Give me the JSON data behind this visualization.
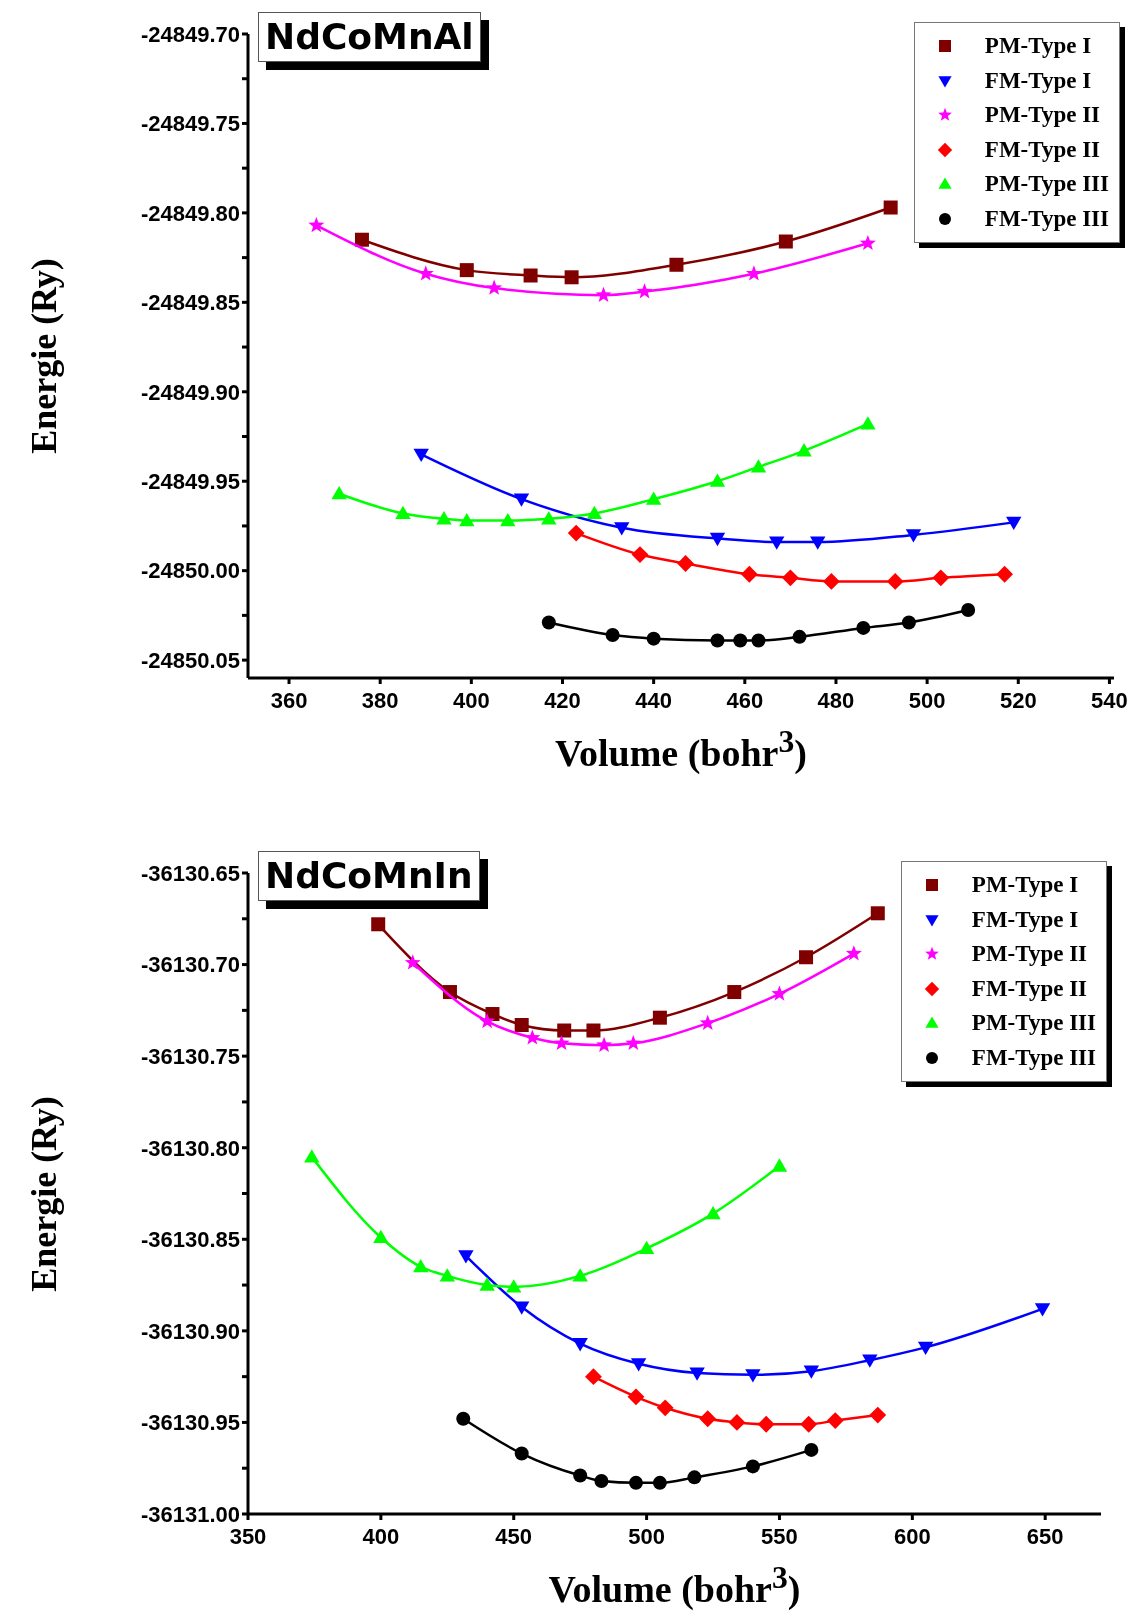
{
  "chart_data": [
    {
      "type": "line",
      "title": "NdCoMnAl",
      "xlabel": "Volume (bohr$^{3}$)",
      "ylabel": "Energie (Ry)",
      "legend": "top right",
      "grid": false,
      "line_style": "solid",
      "xlim": [
        351,
        541
      ],
      "xticks": [
        360,
        380,
        400,
        420,
        440,
        460,
        480,
        500,
        520,
        540
      ],
      "ylim": [
        -24850.06,
        -24849.7
      ],
      "yticks": [
        {
          "value": -24850.05,
          "label": "-24850.05"
        },
        {
          "value": -24850.025,
          "label": null
        },
        {
          "value": -24850.0,
          "label": "-24850.00"
        },
        {
          "value": -24849.975,
          "label": null
        },
        {
          "value": -24849.95,
          "label": "-24849.95"
        },
        {
          "value": -24849.925,
          "label": null
        },
        {
          "value": -24849.9,
          "label": "-24849.90"
        },
        {
          "value": -24849.875,
          "label": null
        },
        {
          "value": -24849.85,
          "label": "-24849.85"
        },
        {
          "value": -24849.825,
          "label": null
        },
        {
          "value": -24849.8,
          "label": "-24849.80"
        },
        {
          "value": -24849.775,
          "label": null
        },
        {
          "value": -24849.75,
          "label": "-24849.75"
        },
        {
          "value": -24849.725,
          "label": null
        },
        {
          "value": -24849.7,
          "label": "-24849.70"
        }
      ],
      "series": [
        {
          "name": "PM-Type I",
          "color": "#800000",
          "marker": "square",
          "x": [
            376,
            399,
            413,
            422,
            445,
            469,
            492
          ],
          "values": [
            -24849.815,
            -24849.832,
            -24849.835,
            -24849.836,
            -24849.829,
            -24849.816,
            -24849.797
          ]
        },
        {
          "name": "FM-Type I",
          "color": "#0000ff",
          "marker": "triangle-down",
          "x": [
            389,
            411,
            433,
            454,
            467,
            476,
            497,
            519
          ],
          "values": [
            -24849.935,
            -24849.96,
            -24849.976,
            -24849.982,
            -24849.984,
            -24849.984,
            -24849.98,
            -24849.973
          ]
        },
        {
          "name": "PM-Type II",
          "color": "#ff00ff",
          "marker": "star",
          "x": [
            366,
            390,
            405,
            429,
            438,
            462,
            487
          ],
          "values": [
            -24849.807,
            -24849.834,
            -24849.842,
            -24849.846,
            -24849.844,
            -24849.834,
            -24849.817
          ]
        },
        {
          "name": "FM-Type II",
          "color": "#ff0000",
          "marker": "diamond",
          "x": [
            423,
            437,
            447,
            461,
            470,
            479,
            493,
            503,
            517
          ],
          "values": [
            -24849.979,
            -24849.991,
            -24849.996,
            -24850.002,
            -24850.004,
            -24850.006,
            -24850.006,
            -24850.004,
            -24850.002
          ]
        },
        {
          "name": "PM-Type III",
          "color": "#00ff00",
          "marker": "triangle",
          "x": [
            371,
            385,
            394,
            399,
            408,
            417,
            427,
            440,
            454,
            463,
            473,
            487
          ],
          "values": [
            -24849.957,
            -24849.968,
            -24849.971,
            -24849.972,
            -24849.972,
            -24849.971,
            -24849.968,
            -24849.96,
            -24849.95,
            -24849.942,
            -24849.933,
            -24849.918
          ]
        },
        {
          "name": "FM-Type III",
          "color": "#000000",
          "marker": "circle",
          "x": [
            417,
            431,
            440,
            454,
            459,
            463,
            472,
            486,
            496,
            509
          ],
          "values": [
            -24850.029,
            -24850.036,
            -24850.038,
            -24850.039,
            -24850.039,
            -24850.039,
            -24850.037,
            -24850.032,
            -24850.029,
            -24850.022
          ]
        }
      ]
    },
    {
      "type": "line",
      "title": "NdCoMnIn",
      "xlabel": "Volume (bohr$^{3}$)",
      "ylabel": "Energie (Ry)",
      "legend": "top right",
      "grid": false,
      "line_style": "solid",
      "xlim": [
        350,
        671
      ],
      "xticks": [
        350,
        400,
        450,
        500,
        550,
        600,
        650
      ],
      "ylim": [
        -36131.0,
        -36130.65
      ],
      "yticks": [
        {
          "value": -36131.0,
          "label": "-36131.00"
        },
        {
          "value": -36130.975,
          "label": null
        },
        {
          "value": -36130.95,
          "label": "-36130.95"
        },
        {
          "value": -36130.925,
          "label": null
        },
        {
          "value": -36130.9,
          "label": "-36130.90"
        },
        {
          "value": -36130.875,
          "label": null
        },
        {
          "value": -36130.85,
          "label": "-36130.85"
        },
        {
          "value": -36130.825,
          "label": null
        },
        {
          "value": -36130.8,
          "label": "-36130.80"
        },
        {
          "value": -36130.775,
          "label": null
        },
        {
          "value": -36130.75,
          "label": "-36130.75"
        },
        {
          "value": -36130.725,
          "label": null
        },
        {
          "value": -36130.7,
          "label": "-36130.70"
        },
        {
          "value": -36130.675,
          "label": null
        },
        {
          "value": -36130.65,
          "label": "-36130.65"
        }
      ],
      "series": [
        {
          "name": "PM-Type I",
          "color": "#800000",
          "marker": "square",
          "x": [
            399,
            426,
            442,
            453,
            469,
            480,
            505,
            533,
            560,
            587
          ],
          "values": [
            -36130.678,
            -36130.715,
            -36130.727,
            -36130.733,
            -36130.736,
            -36130.736,
            -36130.729,
            -36130.715,
            -36130.696,
            -36130.672
          ]
        },
        {
          "name": "FM-Type I",
          "color": "#0000ff",
          "marker": "triangle-down",
          "x": [
            432,
            453,
            475,
            497,
            519,
            540,
            562,
            584,
            605,
            649
          ],
          "values": [
            -36130.859,
            -36130.887,
            -36130.907,
            -36130.918,
            -36130.923,
            -36130.924,
            -36130.922,
            -36130.916,
            -36130.909,
            -36130.888
          ]
        },
        {
          "name": "PM-Type II",
          "color": "#ff00ff",
          "marker": "star",
          "x": [
            412,
            440,
            457,
            468,
            484,
            495,
            523,
            550,
            578
          ],
          "values": [
            -36130.699,
            -36130.731,
            -36130.74,
            -36130.743,
            -36130.744,
            -36130.743,
            -36130.732,
            -36130.716,
            -36130.694
          ]
        },
        {
          "name": "FM-Type II",
          "color": "#ff0000",
          "marker": "diamond",
          "x": [
            480,
            496,
            507,
            523,
            534,
            545,
            561,
            571,
            587
          ],
          "values": [
            -36130.925,
            -36130.936,
            -36130.942,
            -36130.948,
            -36130.95,
            -36130.951,
            -36130.951,
            -36130.949,
            -36130.946
          ]
        },
        {
          "name": "PM-Type III",
          "color": "#00ff00",
          "marker": "triangle",
          "x": [
            374,
            400,
            415,
            425,
            440,
            450,
            475,
            500,
            525,
            550
          ],
          "values": [
            -36130.805,
            -36130.849,
            -36130.865,
            -36130.87,
            -36130.875,
            -36130.876,
            -36130.87,
            -36130.855,
            -36130.836,
            -36130.81
          ]
        },
        {
          "name": "FM-Type III",
          "color": "#000000",
          "marker": "circle",
          "x": [
            431,
            453,
            475,
            483,
            496,
            505,
            518,
            540,
            562
          ],
          "values": [
            -36130.948,
            -36130.967,
            -36130.979,
            -36130.982,
            -36130.983,
            -36130.983,
            -36130.98,
            -36130.974,
            -36130.965
          ]
        }
      ]
    }
  ]
}
